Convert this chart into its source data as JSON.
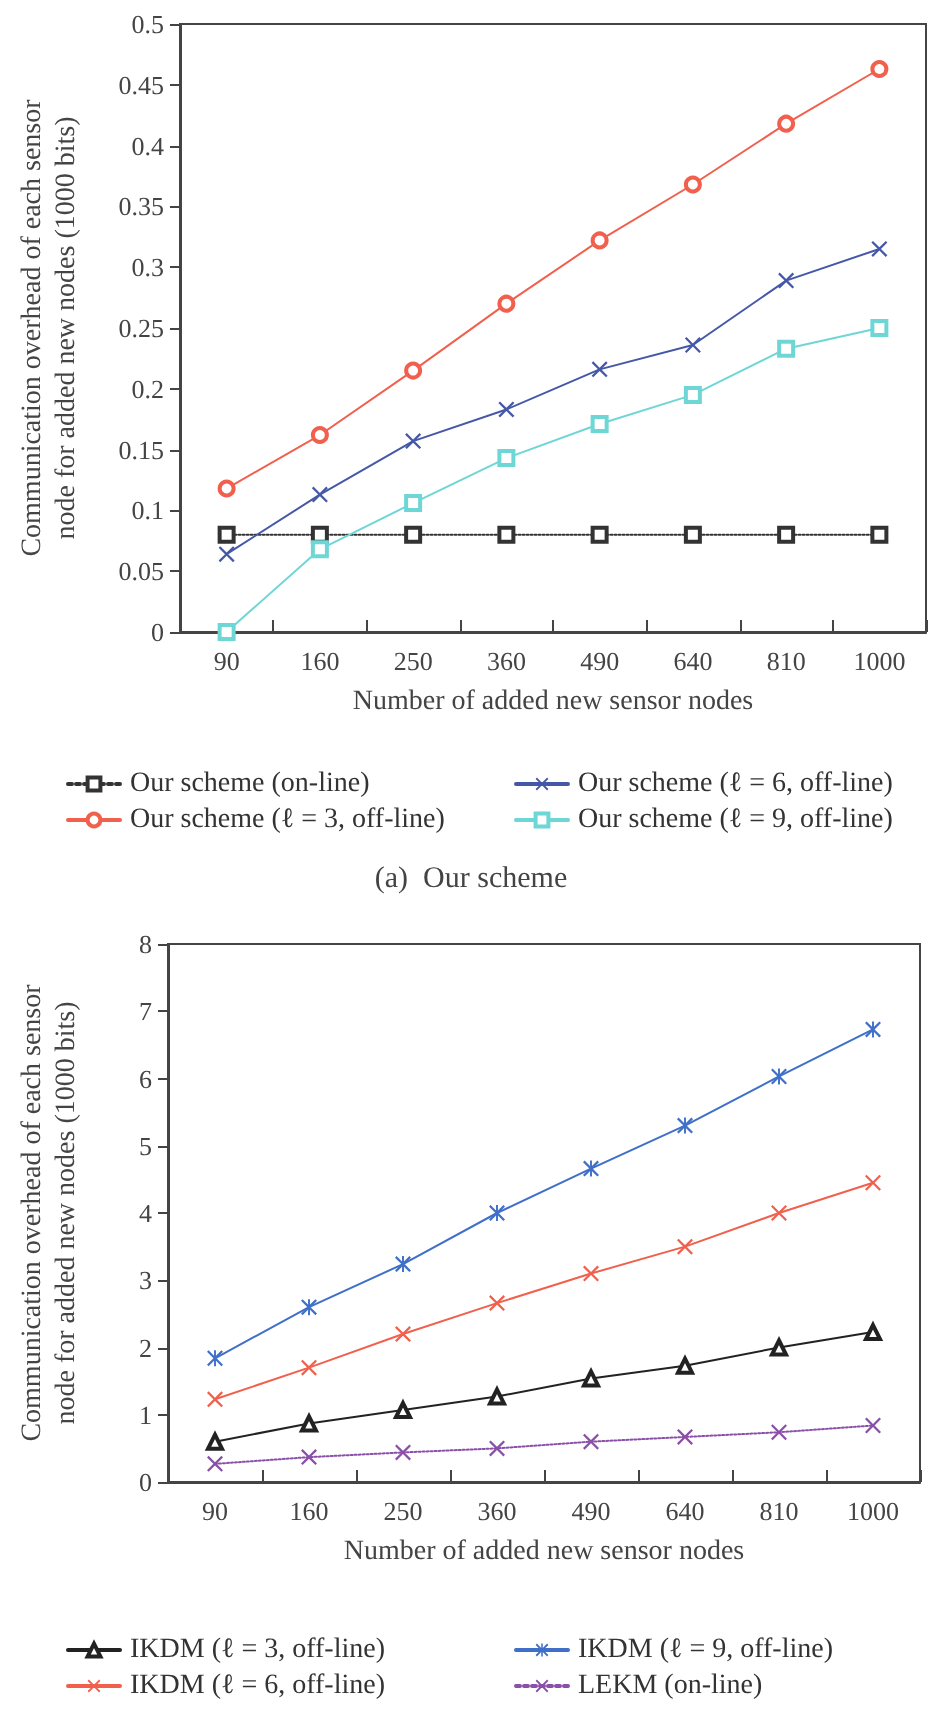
{
  "chart_data": [
    {
      "type": "line",
      "xlabel": "Number of added new sensor nodes",
      "ylabel": "Communication overhead of each sensor\nnode for added new nodes (1000 bits)",
      "categories": [
        "90",
        "160",
        "250",
        "360",
        "490",
        "640",
        "810",
        "1000"
      ],
      "ylim": [
        0,
        0.5
      ],
      "yticks": [
        0,
        0.05,
        0.1,
        0.15,
        0.2,
        0.25,
        0.3,
        0.35,
        0.4,
        0.45,
        0.5
      ],
      "grid": false,
      "legend": "bottom",
      "annotations": [
        "(a)  Our scheme"
      ],
      "series": [
        {
          "name": "Our scheme (on-line)",
          "color": "#333333",
          "marker": "square",
          "line_style": "dotted",
          "values": [
            0.08,
            0.08,
            0.08,
            0.08,
            0.08,
            0.08,
            0.08,
            0.08
          ]
        },
        {
          "name": "Our scheme (ℓ = 3, off-line)",
          "color": "#f0604d",
          "marker": "circle",
          "line_style": "solid",
          "values": [
            0.118,
            0.162,
            0.215,
            0.27,
            0.322,
            0.368,
            0.418,
            0.463
          ]
        },
        {
          "name": "Our scheme (ℓ = 6, off-line)",
          "color": "#4558a8",
          "marker": "cross",
          "line_style": "solid",
          "values": [
            0.064,
            0.113,
            0.157,
            0.183,
            0.216,
            0.236,
            0.289,
            0.315
          ]
        },
        {
          "name": "Our scheme (ℓ = 9, off-line)",
          "color": "#6fd6d6",
          "marker": "square",
          "line_style": "solid",
          "values": [
            0.0,
            0.068,
            0.106,
            0.143,
            0.171,
            0.195,
            0.233,
            0.25
          ]
        }
      ]
    },
    {
      "type": "line",
      "xlabel": "Number of added new sensor nodes",
      "ylabel": "Communication overhead of each sensor\nnode for added new nodes (1000 bits)",
      "categories": [
        "90",
        "160",
        "250",
        "360",
        "490",
        "640",
        "810",
        "1000"
      ],
      "ylim": [
        0,
        8
      ],
      "yticks": [
        0,
        1,
        2,
        3,
        4,
        5,
        6,
        7,
        8
      ],
      "grid": false,
      "legend": "bottom",
      "series": [
        {
          "name": "IKDM (ℓ = 3, off-line)",
          "color": "#222222",
          "marker": "triangle",
          "line_style": "solid",
          "values": [
            0.6,
            0.87,
            1.07,
            1.27,
            1.54,
            1.73,
            2.0,
            2.23
          ]
        },
        {
          "name": "IKDM (ℓ = 6, off-line)",
          "color": "#f0604d",
          "marker": "cross",
          "line_style": "solid",
          "values": [
            1.23,
            1.7,
            2.2,
            2.66,
            3.1,
            3.5,
            4.0,
            4.45
          ]
        },
        {
          "name": "IKDM (ℓ = 9, off-line)",
          "color": "#3f6fc8",
          "marker": "star",
          "line_style": "solid",
          "values": [
            1.84,
            2.6,
            3.24,
            4.0,
            4.66,
            5.3,
            6.03,
            6.73
          ]
        },
        {
          "name": "LEKM (on-line)",
          "color": "#8a4fa8",
          "marker": "cross",
          "line_style": "dotted",
          "values": [
            0.27,
            0.37,
            0.44,
            0.5,
            0.6,
            0.67,
            0.74,
            0.84
          ]
        }
      ]
    }
  ]
}
